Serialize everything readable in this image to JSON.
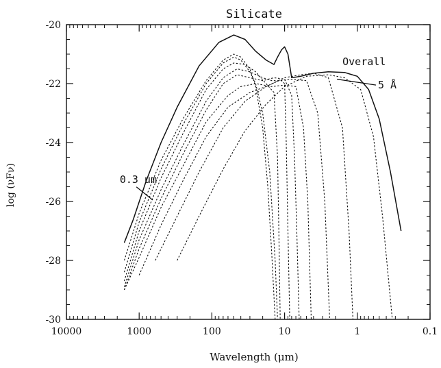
{
  "chart_data": {
    "type": "line",
    "title": "Silicate",
    "xlabel": "Wavelength (μm)",
    "ylabel": "log (νFν)",
    "x_scale": "log",
    "x_reversed": true,
    "xlim": [
      10000,
      0.1
    ],
    "ylim": [
      -30,
      -20
    ],
    "x_ticks": [
      {
        "value": 10000,
        "label": "10000"
      },
      {
        "value": 1000,
        "label": "1000"
      },
      {
        "value": 100,
        "label": "100"
      },
      {
        "value": 10,
        "label": "10"
      },
      {
        "value": 1,
        "label": "1"
      },
      {
        "value": 0.1,
        "label": "0.1"
      }
    ],
    "y_ticks": [
      {
        "value": -20,
        "label": "-20"
      },
      {
        "value": -22,
        "label": "-22"
      },
      {
        "value": -24,
        "label": "-24"
      },
      {
        "value": -26,
        "label": "-26"
      },
      {
        "value": -28,
        "label": "-28"
      },
      {
        "value": -30,
        "label": "-30"
      }
    ],
    "grid": false,
    "series": [
      {
        "name": "Overall",
        "style": "solid",
        "x": [
          1600,
          1200,
          800,
          500,
          300,
          150,
          80,
          50,
          35,
          25,
          18,
          14,
          12.5,
          11,
          10,
          9,
          8,
          7,
          6,
          4,
          2.5,
          1.5,
          1.0,
          0.7,
          0.5,
          0.35,
          0.25
        ],
        "y": [
          -27.4,
          -26.6,
          -25.3,
          -24.0,
          -22.8,
          -21.4,
          -20.6,
          -20.35,
          -20.5,
          -20.9,
          -21.2,
          -21.35,
          -21.1,
          -20.85,
          -20.75,
          -21.0,
          -21.8,
          -21.78,
          -21.75,
          -21.65,
          -21.6,
          -21.62,
          -21.75,
          -22.2,
          -23.2,
          -25.0,
          -27.0
        ]
      },
      {
        "style": "dotted",
        "x": [
          1600,
          1000,
          500,
          250,
          120,
          70,
          50,
          40,
          30,
          25,
          20,
          17,
          15,
          13.5
        ],
        "y": [
          -28.0,
          -26.4,
          -24.6,
          -23.2,
          -21.9,
          -21.2,
          -21.0,
          -21.1,
          -21.5,
          -22.1,
          -23.5,
          -25.5,
          -27.8,
          -30.0
        ]
      },
      {
        "style": "dotted",
        "x": [
          1600,
          1000,
          500,
          250,
          120,
          70,
          50,
          40,
          30,
          25,
          20,
          16,
          13.5,
          12.5
        ],
        "y": [
          -28.4,
          -26.7,
          -24.9,
          -23.4,
          -22.0,
          -21.3,
          -21.1,
          -21.2,
          -21.6,
          -22.0,
          -23.0,
          -25.0,
          -28.0,
          -30.0
        ]
      },
      {
        "style": "dotted",
        "x": [
          1600,
          1000,
          500,
          250,
          120,
          70,
          50,
          35,
          25,
          18,
          14,
          12.5,
          12,
          11.5
        ],
        "y": [
          -28.7,
          -27.0,
          -25.2,
          -23.7,
          -22.2,
          -21.5,
          -21.3,
          -21.35,
          -21.6,
          -22.0,
          -22.3,
          -24.5,
          -27.0,
          -30.0
        ]
      },
      {
        "style": "dotted",
        "x": [
          1600,
          1000,
          500,
          250,
          120,
          70,
          45,
          30,
          20,
          15,
          11,
          10,
          9.5,
          9,
          8.5
        ],
        "y": [
          -28.9,
          -27.3,
          -25.6,
          -24.1,
          -22.6,
          -21.8,
          -21.5,
          -21.6,
          -21.8,
          -21.9,
          -21.9,
          -22.0,
          -24.0,
          -27.0,
          -30.0
        ]
      },
      {
        "style": "dotted",
        "x": [
          1600,
          1000,
          500,
          250,
          120,
          70,
          45,
          30,
          20,
          14,
          10,
          8,
          7.3,
          6.8,
          6.3
        ],
        "y": [
          -29.0,
          -27.6,
          -25.9,
          -24.4,
          -22.9,
          -22.0,
          -21.7,
          -21.8,
          -21.9,
          -21.8,
          -21.85,
          -22.4,
          -24.5,
          -27.0,
          -30.0
        ]
      },
      {
        "style": "dotted",
        "x": [
          1600,
          1000,
          500,
          250,
          120,
          60,
          40,
          25,
          15,
          10,
          7,
          5.5,
          4.8,
          4.3
        ],
        "y": [
          -29.0,
          -27.9,
          -26.2,
          -24.8,
          -23.3,
          -22.4,
          -22.1,
          -22.0,
          -22.1,
          -22.05,
          -22.1,
          -23.5,
          -26.0,
          -30.0
        ]
      },
      {
        "style": "dotted",
        "x": [
          1000,
          500,
          250,
          120,
          60,
          30,
          18,
          12,
          8,
          5,
          3.5,
          2.8,
          2.4
        ],
        "y": [
          -28.5,
          -26.8,
          -25.3,
          -23.8,
          -22.8,
          -22.3,
          -22.1,
          -21.9,
          -21.85,
          -21.9,
          -23.0,
          -26.0,
          -30.0
        ]
      },
      {
        "style": "dotted",
        "x": [
          600,
          300,
          150,
          70,
          35,
          18,
          10,
          6,
          4,
          2.5,
          1.6,
          1.3,
          1.15
        ],
        "y": [
          -28.0,
          -26.5,
          -25.0,
          -23.5,
          -22.6,
          -22.1,
          -21.8,
          -21.7,
          -21.65,
          -21.8,
          -23.5,
          -27.0,
          -30.0
        ]
      },
      {
        "style": "dotted",
        "x": [
          300,
          150,
          70,
          35,
          18,
          10,
          5,
          2.5,
          1.5,
          0.9,
          0.6,
          0.45,
          0.33
        ],
        "y": [
          -28.0,
          -26.5,
          -24.9,
          -23.6,
          -22.7,
          -22.1,
          -21.75,
          -21.7,
          -21.8,
          -22.2,
          -23.8,
          -26.5,
          -30.0
        ]
      }
    ],
    "annotations": [
      {
        "text": "Overall",
        "x": 1.6,
        "y": -21.25,
        "anchor": "start"
      },
      {
        "text": "5 Å",
        "x": 0.52,
        "y": -22.05,
        "anchor": "start",
        "pointer_to": {
          "x": 1.9,
          "y": -21.85
        }
      },
      {
        "text": "0.3 um",
        "x": 1850,
        "y": -25.25,
        "anchor": "start",
        "pointer_to": {
          "x": 650,
          "y": -25.95
        }
      }
    ]
  }
}
